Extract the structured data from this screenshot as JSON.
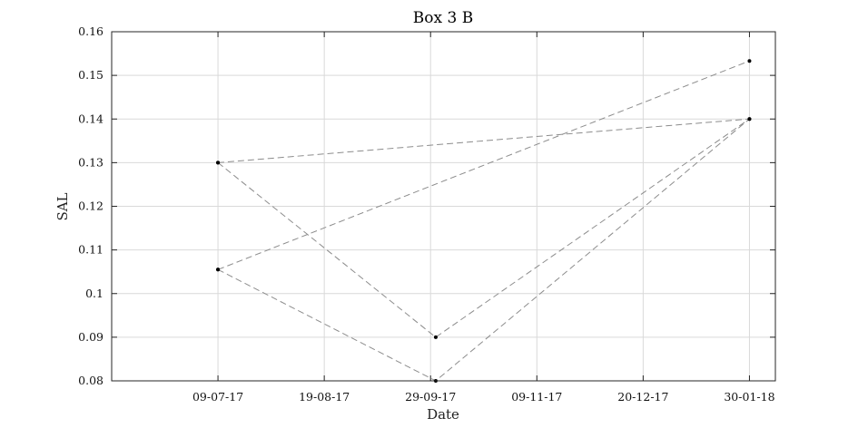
{
  "chart_data": {
    "type": "line",
    "title": "Box 3 B",
    "xlabel": "Date",
    "ylabel": "SAL",
    "x_axis_type": "date",
    "x_tick_labels": [
      "09-07-17",
      "19-08-17",
      "29-09-17",
      "09-11-17",
      "20-12-17",
      "30-01-18"
    ],
    "x_ticks": [
      "2017-07-09",
      "2017-08-19",
      "2017-09-29",
      "2017-11-09",
      "2017-12-20",
      "2018-01-30"
    ],
    "xlim": [
      "2017-05-29",
      "2018-02-09"
    ],
    "ylim": [
      0.08,
      0.16
    ],
    "y_ticks": [
      0.08,
      0.09,
      0.1,
      0.11,
      0.12,
      0.13,
      0.14,
      0.15,
      0.16
    ],
    "y_tick_labels": [
      "0.08",
      "0.09",
      "0.1",
      "0.11",
      "0.12",
      "0.13",
      "0.14",
      "0.15",
      "0.16"
    ],
    "grid": true,
    "series": [
      {
        "points": [
          {
            "x": "2017-07-09",
            "y": 0.13
          },
          {
            "x": "2017-10-01",
            "y": 0.09
          },
          {
            "x": "2018-01-30",
            "y": 0.14
          },
          {
            "x": "2017-07-09",
            "y": 0.13
          }
        ]
      },
      {
        "points": [
          {
            "x": "2017-07-09",
            "y": 0.1055
          },
          {
            "x": "2017-10-01",
            "y": 0.08
          },
          {
            "x": "2018-01-30",
            "y": 0.14
          }
        ]
      },
      {
        "points": [
          {
            "x": "2017-07-09",
            "y": 0.1055
          },
          {
            "x": "2018-01-30",
            "y": 0.1533
          }
        ]
      }
    ],
    "colors": {
      "line": "#8c8c8c",
      "marker": "#000000",
      "grid": "#d9d9d9",
      "axis": "#262626"
    }
  }
}
